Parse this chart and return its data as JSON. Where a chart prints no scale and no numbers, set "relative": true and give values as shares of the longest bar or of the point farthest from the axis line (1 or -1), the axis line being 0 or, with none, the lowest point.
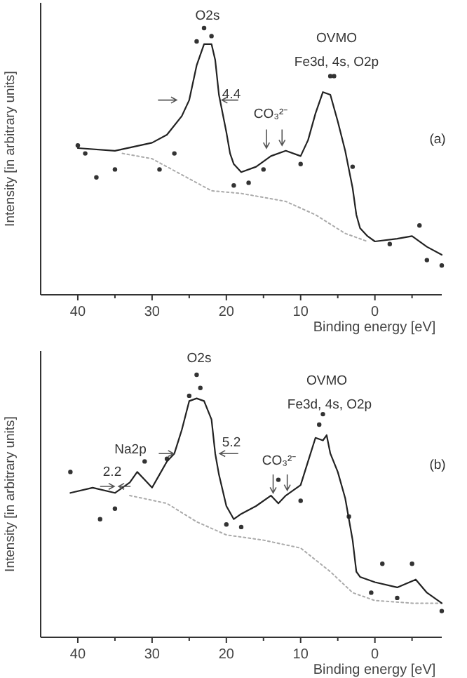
{
  "chart_data": [
    {
      "type": "line",
      "relative": true,
      "xlabel": "Binding energy [eV]",
      "ylabel": "Intensity [in arbitrary units]",
      "xlim": [
        45,
        -9
      ],
      "xticks": [
        40,
        {
          "value": 35,
          "label": null
        },
        30,
        {
          "value": 25,
          "label": null
        },
        20,
        {
          "value": 15,
          "label": null
        },
        10,
        {
          "value": 5,
          "label": null
        },
        0,
        {
          "value": -5,
          "label": null
        }
      ],
      "annotations": [
        "O2s",
        "OVMO",
        "Fe3d, 4s, O2p",
        "4.4",
        "CO₃²⁻",
        "(a)"
      ],
      "series": [
        {
          "type": "scatter",
          "color": "#333333",
          "marker": "circle",
          "x": [
            40,
            39,
            37.5,
            35,
            29,
            27,
            24,
            23,
            22,
            19,
            17,
            15,
            10,
            6,
            5.5,
            3,
            -2,
            -6,
            -7,
            -9
          ],
          "values": [
            0.56,
            0.53,
            0.44,
            0.47,
            0.47,
            0.53,
            0.95,
            1.0,
            0.97,
            0.41,
            0.42,
            0.47,
            0.49,
            0.82,
            0.82,
            0.48,
            0.19,
            0.26,
            0.13,
            0.11
          ]
        },
        {
          "type": "line",
          "color": "#aaaaaa",
          "line_style": "dotted",
          "x": [
            34,
            30,
            26,
            22,
            18,
            12,
            8,
            4,
            1
          ],
          "values": [
            0.53,
            0.51,
            0.45,
            0.39,
            0.38,
            0.35,
            0.3,
            0.23,
            0.2
          ]
        },
        {
          "type": "line",
          "color": "#222222",
          "line_style": "solid",
          "x": [
            40,
            35,
            30,
            28,
            26,
            25,
            24,
            23,
            22,
            21.5,
            21,
            20,
            19.5,
            19,
            18,
            16,
            14,
            12,
            10,
            9,
            8,
            7,
            6,
            5,
            4,
            3,
            2.5,
            2,
            1,
            0,
            -3,
            -5,
            -7,
            -9
          ],
          "values": [
            0.55,
            0.54,
            0.57,
            0.6,
            0.67,
            0.73,
            0.86,
            0.94,
            0.94,
            0.88,
            0.75,
            0.61,
            0.53,
            0.49,
            0.46,
            0.48,
            0.52,
            0.54,
            0.52,
            0.58,
            0.68,
            0.76,
            0.75,
            0.65,
            0.54,
            0.4,
            0.3,
            0.25,
            0.22,
            0.2,
            0.21,
            0.22,
            0.18,
            0.15
          ]
        }
      ]
    },
    {
      "type": "line",
      "relative": true,
      "xlabel": "Binding energy [eV]",
      "ylabel": "Intensity [in arbitrary units]",
      "xlim": [
        45,
        -9
      ],
      "xticks": [
        40,
        {
          "value": 35,
          "label": null
        },
        30,
        {
          "value": 25,
          "label": null
        },
        20,
        {
          "value": 15,
          "label": null
        },
        10,
        {
          "value": 5,
          "label": null
        },
        0,
        {
          "value": -5,
          "label": null
        }
      ],
      "annotations": [
        "O2s",
        "OVMO",
        "Fe3d, 4s, O2p",
        "Na2p",
        "2.2",
        "5.2",
        "CO₃²⁻",
        "(b)"
      ],
      "series": [
        {
          "type": "scatter",
          "color": "#333333",
          "marker": "circle",
          "x": [
            41,
            37,
            35,
            31,
            28,
            25,
            24,
            23.5,
            20,
            18,
            13,
            10,
            7.5,
            7,
            3.5,
            0.5,
            -1,
            -3,
            -5,
            -9
          ],
          "values": [
            0.63,
            0.45,
            0.49,
            0.67,
            0.68,
            0.92,
            1.0,
            0.95,
            0.43,
            0.42,
            0.6,
            0.52,
            0.81,
            0.85,
            0.46,
            0.17,
            0.28,
            0.15,
            0.28,
            0.1
          ]
        },
        {
          "type": "line",
          "color": "#aaaaaa",
          "line_style": "dotted",
          "x": [
            33,
            28,
            24,
            20,
            15,
            10,
            6,
            3,
            0,
            -5,
            -9
          ],
          "values": [
            0.54,
            0.51,
            0.44,
            0.39,
            0.37,
            0.34,
            0.25,
            0.17,
            0.14,
            0.13,
            0.13
          ]
        },
        {
          "type": "line",
          "color": "#222222",
          "line_style": "solid",
          "x": [
            41,
            38,
            35,
            33,
            32,
            31,
            30,
            29,
            28,
            27,
            26,
            25,
            24,
            23,
            22,
            21.5,
            21,
            20,
            19,
            18,
            16,
            14,
            13,
            12,
            10,
            9,
            8,
            7,
            6.5,
            6,
            5,
            4,
            3,
            2.5,
            2,
            0,
            -3,
            -5.5,
            -7,
            -9
          ],
          "values": [
            0.55,
            0.57,
            0.55,
            0.59,
            0.63,
            0.6,
            0.57,
            0.62,
            0.67,
            0.7,
            0.79,
            0.9,
            0.91,
            0.9,
            0.83,
            0.7,
            0.62,
            0.5,
            0.45,
            0.47,
            0.5,
            0.54,
            0.51,
            0.54,
            0.58,
            0.67,
            0.76,
            0.75,
            0.77,
            0.7,
            0.63,
            0.53,
            0.37,
            0.25,
            0.23,
            0.21,
            0.19,
            0.22,
            0.17,
            0.13
          ]
        }
      ]
    }
  ]
}
